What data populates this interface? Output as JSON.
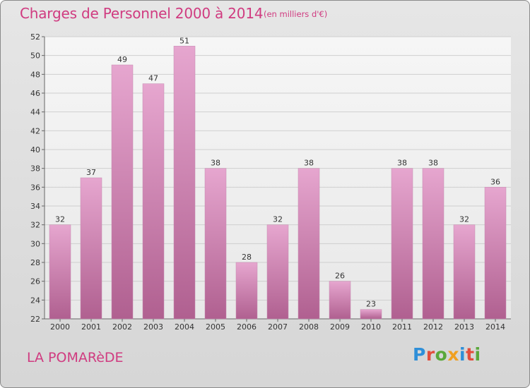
{
  "header": {
    "title": "Charges de Personnel 2000 à 2014",
    "subtitle": "(en milliers d'€)"
  },
  "footer": {
    "town": "LA POMARèDE",
    "logo_text": "Proxiti"
  },
  "colors": {
    "title": "#d03b80",
    "bar_top": "#e6a6cf",
    "bar_bottom": "#b06090",
    "logo": [
      "#2f8fd8",
      "#e34d3c",
      "#5aa83b",
      "#f0a020",
      "#2f8fd8",
      "#e34d3c",
      "#5aa83b"
    ]
  },
  "chart_data": {
    "type": "bar",
    "title": "Charges de Personnel 2000 à 2014",
    "subtitle": "(en milliers d'€)",
    "xlabel": "",
    "ylabel": "",
    "categories": [
      "2000",
      "2001",
      "2002",
      "2003",
      "2004",
      "2005",
      "2006",
      "2007",
      "2008",
      "2009",
      "2010",
      "2011",
      "2012",
      "2013",
      "2014"
    ],
    "values": [
      32,
      37,
      49,
      47,
      51,
      38,
      28,
      32,
      38,
      26,
      23,
      38,
      38,
      32,
      36
    ],
    "ylim": [
      22,
      52
    ],
    "yticks": [
      22,
      24,
      26,
      28,
      30,
      32,
      34,
      36,
      38,
      40,
      42,
      44,
      46,
      48,
      50,
      52
    ],
    "grid": true,
    "legend": "none"
  }
}
